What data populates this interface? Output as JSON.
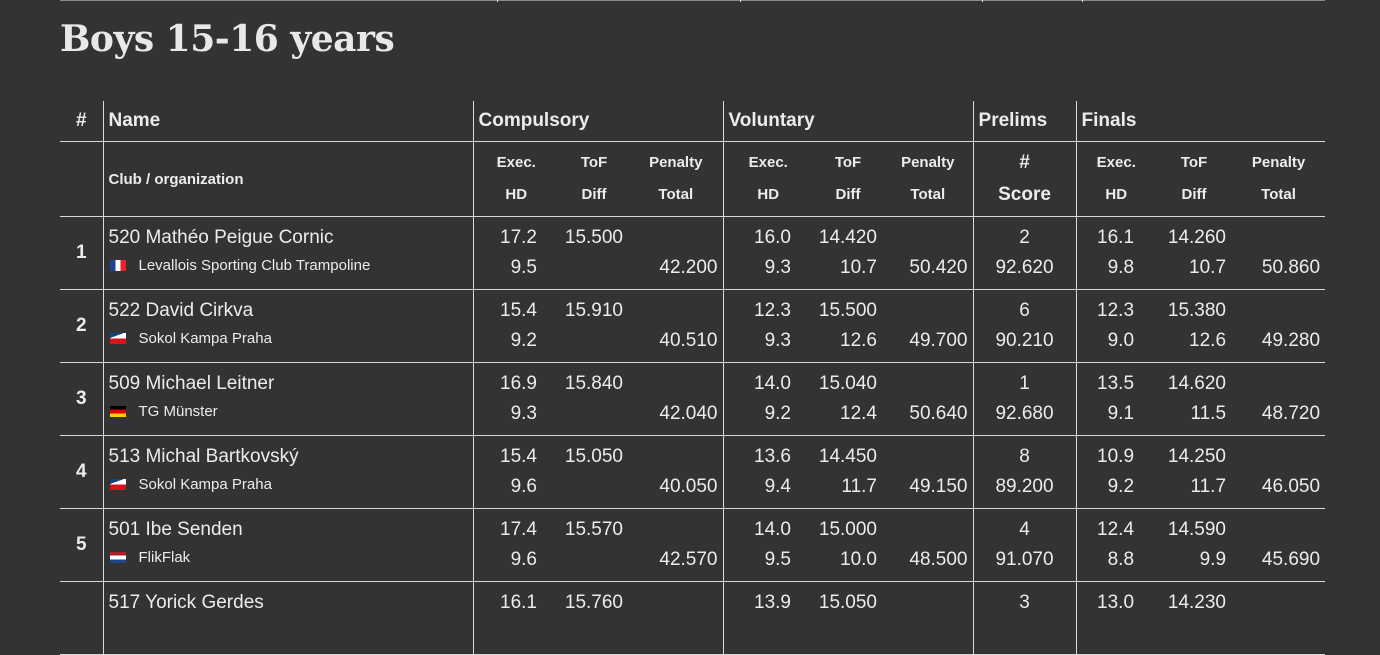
{
  "section_title": "Boys 15-16 years",
  "header": {
    "rank": "#",
    "name": "Name",
    "club": "Club / organization",
    "compulsory": "Compulsory",
    "voluntary": "Voluntary",
    "prelims": "Prelims",
    "finals": "Finals",
    "exec": "Exec.",
    "hd": "HD",
    "tof": "ToF",
    "diff": "Diff",
    "penalty": "Penalty",
    "total": "Total",
    "prelims_num": "#",
    "score": "Score"
  },
  "flags": {
    "fr": [
      "#21409a",
      "#ffffff",
      "#e8232c"
    ],
    "cz": [
      "#ffffff",
      "#d7141a",
      "#11457e"
    ],
    "de": [
      "#000000",
      "#dd0000",
      "#ffce00"
    ],
    "nl": [
      "#ae1c28",
      "#ffffff",
      "#21468b"
    ]
  },
  "rows": [
    {
      "rank": "1",
      "name": "520 Mathéo Peigue Cornic",
      "club": "Levallois Sporting Club Trampoline",
      "flag": "fr",
      "comp": {
        "exec": "17.2",
        "hd": "9.5",
        "tof": "15.500",
        "diff": "",
        "penalty": "",
        "total": "42.200"
      },
      "vol": {
        "exec": "16.0",
        "hd": "9.3",
        "tof": "14.420",
        "diff": "10.7",
        "penalty": "",
        "total": "50.420"
      },
      "prelims": {
        "num": "2",
        "score": "92.620"
      },
      "finals": {
        "exec": "16.1",
        "hd": "9.8",
        "tof": "14.260",
        "diff": "10.7",
        "penalty": "",
        "total": "50.860"
      }
    },
    {
      "rank": "2",
      "name": "522 David Cirkva",
      "club": "Sokol Kampa Praha",
      "flag": "cz",
      "comp": {
        "exec": "15.4",
        "hd": "9.2",
        "tof": "15.910",
        "diff": "",
        "penalty": "",
        "total": "40.510"
      },
      "vol": {
        "exec": "12.3",
        "hd": "9.3",
        "tof": "15.500",
        "diff": "12.6",
        "penalty": "",
        "total": "49.700"
      },
      "prelims": {
        "num": "6",
        "score": "90.210"
      },
      "finals": {
        "exec": "12.3",
        "hd": "9.0",
        "tof": "15.380",
        "diff": "12.6",
        "penalty": "",
        "total": "49.280"
      }
    },
    {
      "rank": "3",
      "name": "509 Michael Leitner",
      "club": "TG Münster",
      "flag": "de",
      "comp": {
        "exec": "16.9",
        "hd": "9.3",
        "tof": "15.840",
        "diff": "",
        "penalty": "",
        "total": "42.040"
      },
      "vol": {
        "exec": "14.0",
        "hd": "9.2",
        "tof": "15.040",
        "diff": "12.4",
        "penalty": "",
        "total": "50.640"
      },
      "prelims": {
        "num": "1",
        "score": "92.680"
      },
      "finals": {
        "exec": "13.5",
        "hd": "9.1",
        "tof": "14.620",
        "diff": "11.5",
        "penalty": "",
        "total": "48.720"
      }
    },
    {
      "rank": "4",
      "name": "513 Michal Bartkovský",
      "club": "Sokol Kampa Praha",
      "flag": "cz",
      "comp": {
        "exec": "15.4",
        "hd": "9.6",
        "tof": "15.050",
        "diff": "",
        "penalty": "",
        "total": "40.050"
      },
      "vol": {
        "exec": "13.6",
        "hd": "9.4",
        "tof": "14.450",
        "diff": "11.7",
        "penalty": "",
        "total": "49.150"
      },
      "prelims": {
        "num": "8",
        "score": "89.200"
      },
      "finals": {
        "exec": "10.9",
        "hd": "9.2",
        "tof": "14.250",
        "diff": "11.7",
        "penalty": "",
        "total": "46.050"
      }
    },
    {
      "rank": "5",
      "name": "501 Ibe Senden",
      "club": "FlikFlak",
      "flag": "nl",
      "comp": {
        "exec": "17.4",
        "hd": "9.6",
        "tof": "15.570",
        "diff": "",
        "penalty": "",
        "total": "42.570"
      },
      "vol": {
        "exec": "14.0",
        "hd": "9.5",
        "tof": "15.000",
        "diff": "10.0",
        "penalty": "",
        "total": "48.500"
      },
      "prelims": {
        "num": "4",
        "score": "91.070"
      },
      "finals": {
        "exec": "12.4",
        "hd": "8.8",
        "tof": "14.590",
        "diff": "9.9",
        "penalty": "",
        "total": "45.690"
      }
    },
    {
      "rank": "",
      "name": "517 Yorick Gerdes",
      "club": "",
      "flag": "",
      "comp": {
        "exec": "16.1",
        "hd": "",
        "tof": "15.760",
        "diff": "",
        "penalty": "",
        "total": ""
      },
      "vol": {
        "exec": "13.9",
        "hd": "",
        "tof": "15.050",
        "diff": "",
        "penalty": "",
        "total": ""
      },
      "prelims": {
        "num": "3",
        "score": ""
      },
      "finals": {
        "exec": "13.0",
        "hd": "",
        "tof": "14.230",
        "diff": "",
        "penalty": "",
        "total": ""
      }
    }
  ]
}
